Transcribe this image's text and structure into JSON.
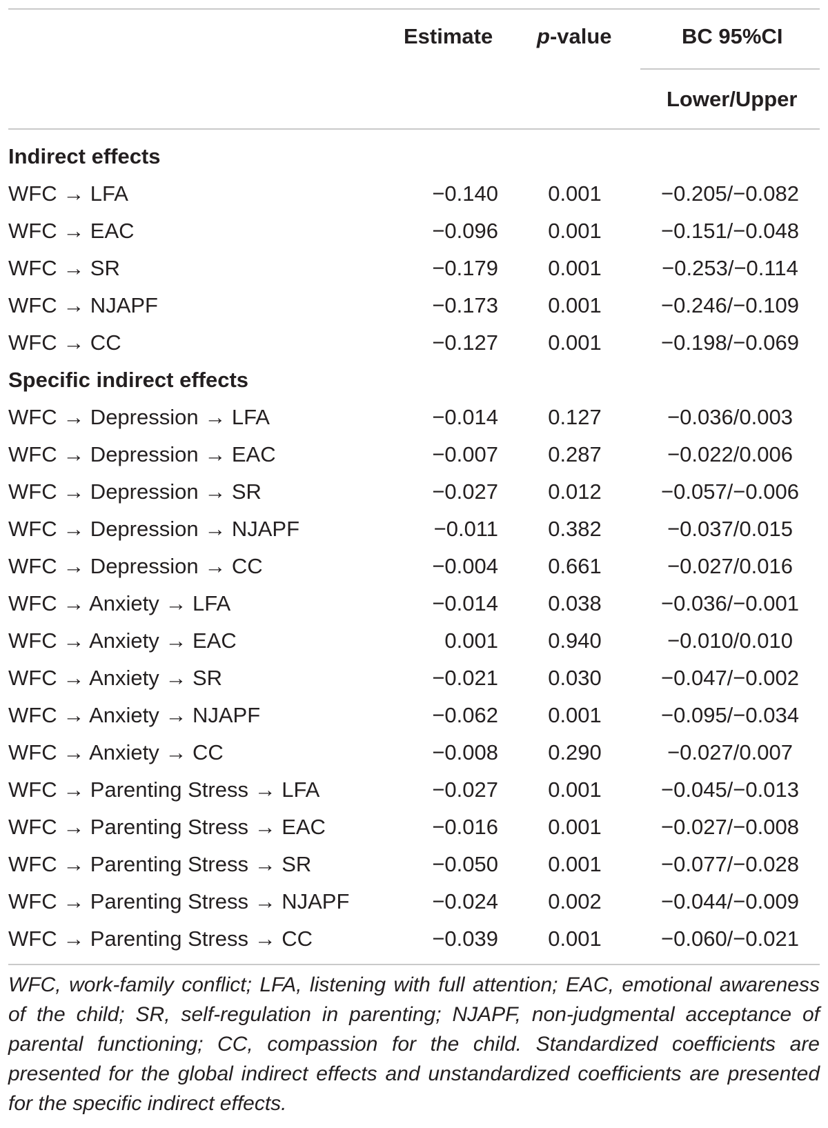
{
  "header": {
    "estimate": "Estimate",
    "p_italic": "p",
    "p_rest": "-value",
    "ci": "BC 95%CI",
    "ci_sub": "Lower/Upper"
  },
  "sections": [
    {
      "title": "Indirect effects",
      "rows": [
        {
          "path": "WFC → LFA",
          "estimate": "−0.140",
          "p": "0.001",
          "ci": "−0.205/−0.082"
        },
        {
          "path": "WFC → EAC",
          "estimate": "−0.096",
          "p": "0.001",
          "ci": "−0.151/−0.048"
        },
        {
          "path": "WFC → SR",
          "estimate": "−0.179",
          "p": "0.001",
          "ci": "−0.253/−0.114"
        },
        {
          "path": "WFC → NJAPF",
          "estimate": "−0.173",
          "p": "0.001",
          "ci": "−0.246/−0.109"
        },
        {
          "path": "WFC → CC",
          "estimate": "−0.127",
          "p": "0.001",
          "ci": "−0.198/−0.069"
        }
      ]
    },
    {
      "title": "Specific indirect effects",
      "rows": [
        {
          "path": "WFC → Depression → LFA",
          "estimate": "−0.014",
          "p": "0.127",
          "ci": "−0.036/0.003"
        },
        {
          "path": "WFC → Depression → EAC",
          "estimate": "−0.007",
          "p": "0.287",
          "ci": "−0.022/0.006"
        },
        {
          "path": "WFC → Depression → SR",
          "estimate": "−0.027",
          "p": "0.012",
          "ci": "−0.057/−0.006"
        },
        {
          "path": "WFC → Depression → NJAPF",
          "estimate": "−0.011",
          "p": "0.382",
          "ci": "−0.037/0.015"
        },
        {
          "path": "WFC → Depression → CC",
          "estimate": "−0.004",
          "p": "0.661",
          "ci": "−0.027/0.016"
        },
        {
          "path": "WFC → Anxiety → LFA",
          "estimate": "−0.014",
          "p": "0.038",
          "ci": "−0.036/−0.001"
        },
        {
          "path": "WFC → Anxiety → EAC",
          "estimate": "0.001",
          "p": "0.940",
          "ci": "−0.010/0.010"
        },
        {
          "path": "WFC → Anxiety → SR",
          "estimate": "−0.021",
          "p": "0.030",
          "ci": "−0.047/−0.002"
        },
        {
          "path": "WFC → Anxiety → NJAPF",
          "estimate": "−0.062",
          "p": "0.001",
          "ci": "−0.095/−0.034"
        },
        {
          "path": "WFC → Anxiety → CC",
          "estimate": "−0.008",
          "p": "0.290",
          "ci": "−0.027/0.007"
        },
        {
          "path": "WFC → Parenting Stress → LFA",
          "estimate": "−0.027",
          "p": "0.001",
          "ci": "−0.045/−0.013"
        },
        {
          "path": "WFC → Parenting Stress → EAC",
          "estimate": "−0.016",
          "p": "0.001",
          "ci": "−0.027/−0.008"
        },
        {
          "path": "WFC → Parenting Stress → SR",
          "estimate": "−0.050",
          "p": "0.001",
          "ci": "−0.077/−0.028"
        },
        {
          "path": "WFC → Parenting Stress → NJAPF",
          "estimate": "−0.024",
          "p": "0.002",
          "ci": "−0.044/−0.009"
        },
        {
          "path": "WFC → Parenting Stress → CC",
          "estimate": "−0.039",
          "p": "0.001",
          "ci": "−0.060/−0.021"
        }
      ]
    }
  ],
  "footnote": "WFC, work-family conflict; LFA, listening with full attention; EAC, emotional awareness of the child; SR, self-regulation in parenting; NJAPF, non-judgmental acceptance of parental functioning; CC, compassion for the child. Standardized coefficients are presented for the global indirect effects and unstandardized coefficients are presented for the specific indirect effects."
}
